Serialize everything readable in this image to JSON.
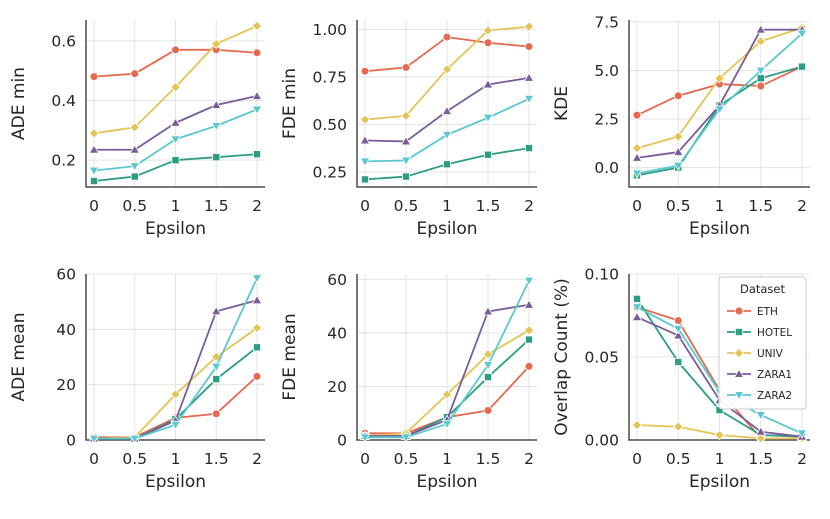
{
  "chart_data": {
    "type": "line",
    "layout": "2x3 grid",
    "x": [
      "0",
      "0.5",
      "1",
      "1.5",
      "2"
    ],
    "series_styles": [
      {
        "name": "ETH",
        "color": "#e4694f",
        "marker": "circle"
      },
      {
        "name": "HOTEL",
        "color": "#2c9c82",
        "marker": "square"
      },
      {
        "name": "UNIV",
        "color": "#e3c456",
        "marker": "diamond"
      },
      {
        "name": "ZARA1",
        "color": "#7a5c99",
        "marker": "triangle-up"
      },
      {
        "name": "ZARA2",
        "color": "#5bc8cf",
        "marker": "triangle-down"
      }
    ],
    "legend": {
      "title": "Dataset",
      "placement": "upper-right of Overlap Count panel"
    },
    "grid": true,
    "panels": [
      {
        "xlabel": "Epsilon",
        "ylabel": "ADE min",
        "ylim": [
          0.11,
          0.67
        ],
        "yticks": [
          0.2,
          0.4,
          0.6
        ],
        "ytick_labels": [
          "0.2",
          "0.4",
          "0.6"
        ],
        "series": [
          {
            "name": "ETH",
            "values": [
              0.48,
              0.49,
              0.57,
              0.57,
              0.56
            ]
          },
          {
            "name": "HOTEL",
            "values": [
              0.13,
              0.145,
              0.2,
              0.21,
              0.22
            ]
          },
          {
            "name": "UNIV",
            "values": [
              0.29,
              0.31,
              0.445,
              0.59,
              0.65
            ]
          },
          {
            "name": "ZARA1",
            "values": [
              0.235,
              0.235,
              0.325,
              0.385,
              0.415
            ]
          },
          {
            "name": "ZARA2",
            "values": [
              0.165,
              0.18,
              0.27,
              0.315,
              0.37
            ]
          }
        ]
      },
      {
        "xlabel": "Epsilon",
        "ylabel": "FDE min",
        "ylim": [
          0.17,
          1.05
        ],
        "yticks": [
          0.25,
          0.5,
          0.75,
          1.0
        ],
        "ytick_labels": [
          "0.25",
          "0.50",
          "0.75",
          "1.00"
        ],
        "series": [
          {
            "name": "ETH",
            "values": [
              0.78,
              0.8,
              0.96,
              0.93,
              0.91
            ]
          },
          {
            "name": "HOTEL",
            "values": [
              0.21,
              0.225,
              0.29,
              0.34,
              0.375
            ]
          },
          {
            "name": "UNIV",
            "values": [
              0.525,
              0.545,
              0.79,
              0.995,
              1.015
            ]
          },
          {
            "name": "ZARA1",
            "values": [
              0.415,
              0.41,
              0.57,
              0.71,
              0.745
            ]
          },
          {
            "name": "ZARA2",
            "values": [
              0.305,
              0.31,
              0.445,
              0.535,
              0.635
            ]
          }
        ]
      },
      {
        "xlabel": "Epsilon",
        "ylabel": "KDE",
        "ylim": [
          -1.0,
          7.6
        ],
        "yticks": [
          0,
          2.5,
          5,
          7.5
        ],
        "ytick_labels": [
          "0.0",
          "2.5",
          "5.0",
          "7.5"
        ],
        "series": [
          {
            "name": "ETH",
            "values": [
              2.7,
              3.7,
              4.3,
              4.2,
              5.2
            ]
          },
          {
            "name": "HOTEL",
            "values": [
              -0.4,
              0.0,
              3.2,
              4.6,
              5.2
            ]
          },
          {
            "name": "UNIV",
            "values": [
              1.0,
              1.6,
              4.6,
              6.5,
              7.2
            ]
          },
          {
            "name": "ZARA1",
            "values": [
              0.5,
              0.8,
              3.2,
              7.1,
              7.1
            ]
          },
          {
            "name": "ZARA2",
            "values": [
              -0.3,
              0.1,
              3.0,
              5.0,
              6.9
            ]
          }
        ]
      },
      {
        "xlabel": "Epsilon",
        "ylabel": "ADE mean",
        "ylim": [
          0,
          60
        ],
        "yticks": [
          0,
          20,
          40,
          60
        ],
        "ytick_labels": [
          "0",
          "20",
          "40",
          "60"
        ],
        "series": [
          {
            "name": "ETH",
            "values": [
              1.0,
              1.0,
              8.0,
              9.5,
              23.0
            ]
          },
          {
            "name": "HOTEL",
            "values": [
              0.5,
              0.5,
              7.5,
              22.0,
              33.5
            ]
          },
          {
            "name": "UNIV",
            "values": [
              0.5,
              1.0,
              16.5,
              30.0,
              40.5
            ]
          },
          {
            "name": "ZARA1",
            "values": [
              0.5,
              0.5,
              7.0,
              46.5,
              50.5
            ]
          },
          {
            "name": "ZARA2",
            "values": [
              0.5,
              0.5,
              5.5,
              26.5,
              58.5
            ]
          }
        ]
      },
      {
        "xlabel": "Epsilon",
        "ylabel": "FDE mean",
        "ylim": [
          0,
          62
        ],
        "yticks": [
          0,
          20,
          40,
          60
        ],
        "ytick_labels": [
          "0",
          "20",
          "40",
          "60"
        ],
        "series": [
          {
            "name": "ETH",
            "values": [
              2.5,
              2.5,
              8.5,
              11.0,
              27.5
            ]
          },
          {
            "name": "HOTEL",
            "values": [
              1.5,
              1.5,
              8.5,
              23.5,
              37.5
            ]
          },
          {
            "name": "UNIV",
            "values": [
              1.5,
              2.5,
              17.0,
              32.0,
              41.0
            ]
          },
          {
            "name": "ZARA1",
            "values": [
              1.5,
              1.5,
              7.5,
              48.0,
              50.5
            ]
          },
          {
            "name": "ZARA2",
            "values": [
              1.0,
              1.0,
              6.0,
              28.0,
              59.5
            ]
          }
        ]
      },
      {
        "xlabel": "Epsilon",
        "ylabel": "Overlap Count (%)",
        "ylim": [
          0,
          0.1
        ],
        "yticks": [
          0,
          0.05,
          0.1
        ],
        "ytick_labels": [
          "0.00",
          "0.05",
          "0.10"
        ],
        "series": [
          {
            "name": "ETH",
            "values": [
              0.08,
              0.072,
              0.03,
              0.001,
              0.001
            ]
          },
          {
            "name": "HOTEL",
            "values": [
              0.085,
              0.047,
              0.018,
              0.003,
              0.002
            ]
          },
          {
            "name": "UNIV",
            "values": [
              0.009,
              0.008,
              0.003,
              0.001,
              0.001
            ]
          },
          {
            "name": "ZARA1",
            "values": [
              0.074,
              0.063,
              0.024,
              0.005,
              0.002
            ]
          },
          {
            "name": "ZARA2",
            "values": [
              0.08,
              0.067,
              0.029,
              0.015,
              0.004
            ]
          }
        ]
      }
    ]
  }
}
